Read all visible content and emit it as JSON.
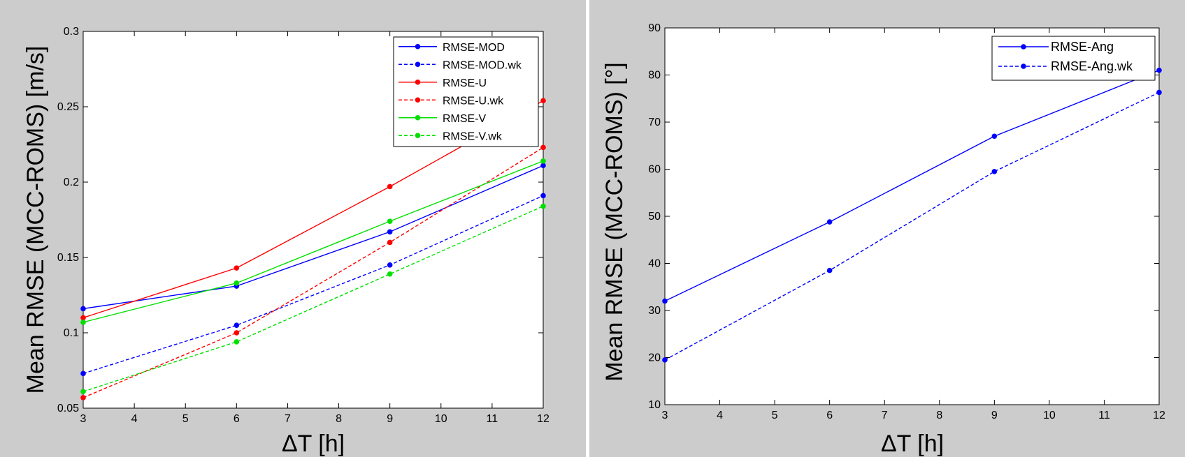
{
  "chart_data": [
    {
      "type": "line",
      "xlabel": "ΔT [h]",
      "ylabel": "Mean RMSE (MCC-ROMS) [m/s]",
      "xlim": [
        3,
        12
      ],
      "ylim": [
        0.05,
        0.3
      ],
      "xticks": [
        "3",
        "4",
        "5",
        "6",
        "7",
        "8",
        "9",
        "10",
        "11",
        "12"
      ],
      "yticks": [
        "0.05",
        "0.1",
        "0.15",
        "0.2",
        "0.25",
        "0.3"
      ],
      "grid": false,
      "legend_position": "top-right",
      "x": [
        3,
        6,
        9,
        12
      ],
      "series": [
        {
          "name": "RMSE-MOD",
          "color": "#0000ff",
          "dash": "solid",
          "values": [
            0.116,
            0.131,
            0.167,
            0.211
          ]
        },
        {
          "name": "RMSE-MOD.wk",
          "color": "#0000ff",
          "dash": "dashed",
          "values": [
            0.073,
            0.105,
            0.145,
            0.191
          ]
        },
        {
          "name": "RMSE-U",
          "color": "#ff0000",
          "dash": "solid",
          "values": [
            0.11,
            0.143,
            0.197,
            0.254
          ]
        },
        {
          "name": "RMSE-U.wk",
          "color": "#ff0000",
          "dash": "dashed",
          "values": [
            0.057,
            0.1,
            0.16,
            0.223
          ]
        },
        {
          "name": "RMSE-V",
          "color": "#00e000",
          "dash": "solid",
          "values": [
            0.107,
            0.133,
            0.174,
            0.214
          ]
        },
        {
          "name": "RMSE-V.wk",
          "color": "#00e000",
          "dash": "dashed",
          "values": [
            0.061,
            0.094,
            0.139,
            0.184
          ]
        }
      ]
    },
    {
      "type": "line",
      "xlabel": "ΔT [h]",
      "ylabel": "Mean RMSE (MCC-ROMS) [°]",
      "xlim": [
        3,
        12
      ],
      "ylim": [
        10,
        90
      ],
      "xticks": [
        "3",
        "4",
        "5",
        "6",
        "7",
        "8",
        "9",
        "10",
        "11",
        "12"
      ],
      "yticks": [
        "10",
        "20",
        "30",
        "40",
        "50",
        "60",
        "70",
        "80",
        "90"
      ],
      "grid": false,
      "legend_position": "top-right",
      "x": [
        3,
        6,
        9,
        12
      ],
      "series": [
        {
          "name": "RMSE-Ang",
          "color": "#0000ff",
          "dash": "solid",
          "values": [
            32,
            48.8,
            67,
            81
          ]
        },
        {
          "name": "RMSE-Ang.wk",
          "color": "#0000ff",
          "dash": "dashed",
          "values": [
            19.5,
            38.5,
            59.5,
            76.3
          ]
        }
      ]
    }
  ]
}
